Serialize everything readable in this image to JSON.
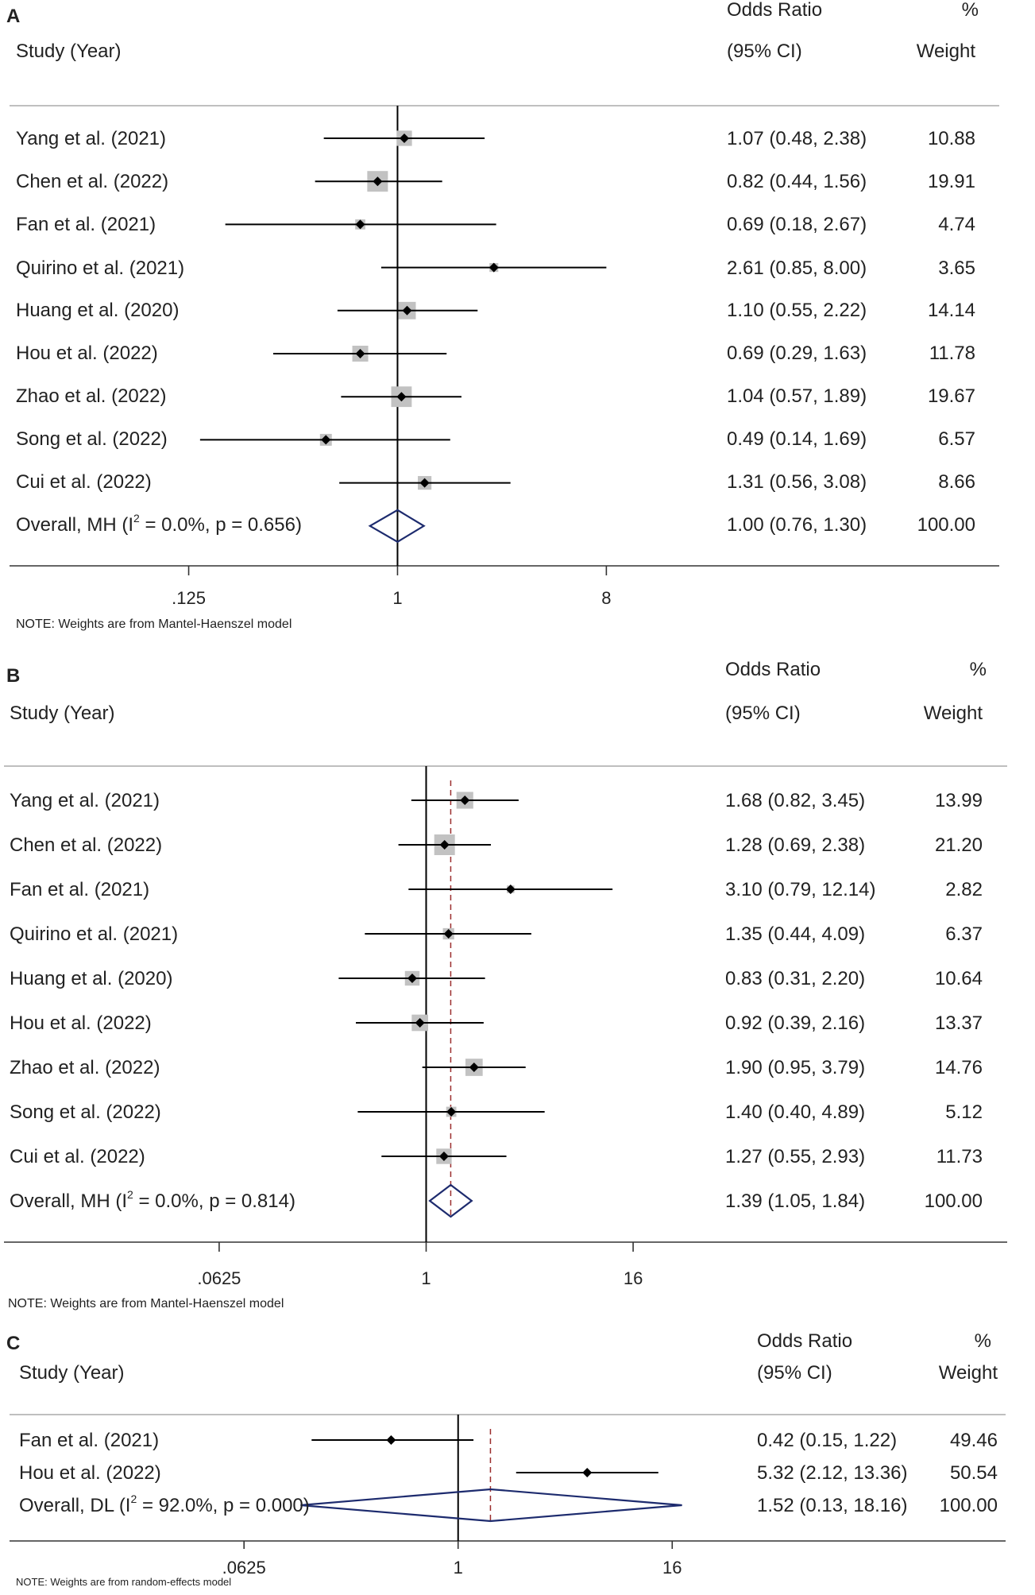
{
  "chart_data": [
    {
      "type": "forest",
      "panel": "A",
      "header": {
        "study": "Study (Year)",
        "effect_line1": "Odds Ratio",
        "effect_line2": "(95% CI)",
        "weight_line1": "%",
        "weight_line2": "Weight"
      },
      "studies": [
        {
          "label": "Yang et al. (2021)",
          "or": 1.07,
          "lo": 0.48,
          "hi": 2.38,
          "weight": 10.88,
          "ci_text": "1.07 (0.48, 2.38)",
          "weight_text": "10.88"
        },
        {
          "label": "Chen et al. (2022)",
          "or": 0.82,
          "lo": 0.44,
          "hi": 1.56,
          "weight": 19.91,
          "ci_text": "0.82 (0.44, 1.56)",
          "weight_text": "19.91"
        },
        {
          "label": "Fan et al. (2021)",
          "or": 0.69,
          "lo": 0.18,
          "hi": 2.67,
          "weight": 4.74,
          "ci_text": "0.69 (0.18, 2.67)",
          "weight_text": "4.74"
        },
        {
          "label": "Quirino et al. (2021)",
          "or": 2.61,
          "lo": 0.85,
          "hi": 8.0,
          "weight": 3.65,
          "ci_text": "2.61 (0.85, 8.00)",
          "weight_text": "3.65"
        },
        {
          "label": "Huang et al. (2020)",
          "or": 1.1,
          "lo": 0.55,
          "hi": 2.22,
          "weight": 14.14,
          "ci_text": "1.10 (0.55, 2.22)",
          "weight_text": "14.14"
        },
        {
          "label": "Hou et al. (2022)",
          "or": 0.69,
          "lo": 0.29,
          "hi": 1.63,
          "weight": 11.78,
          "ci_text": "0.69 (0.29, 1.63)",
          "weight_text": "11.78"
        },
        {
          "label": "Zhao et al. (2022)",
          "or": 1.04,
          "lo": 0.57,
          "hi": 1.89,
          "weight": 19.67,
          "ci_text": "1.04 (0.57, 1.89)",
          "weight_text": "19.67"
        },
        {
          "label": "Song et al. (2022)",
          "or": 0.49,
          "lo": 0.14,
          "hi": 1.69,
          "weight": 6.57,
          "ci_text": "0.49 (0.14, 1.69)",
          "weight_text": "6.57"
        },
        {
          "label": "Cui et al. (2022)",
          "or": 1.31,
          "lo": 0.56,
          "hi": 3.08,
          "weight": 8.66,
          "ci_text": "1.31 (0.56, 3.08)",
          "weight_text": "8.66"
        }
      ],
      "overall": {
        "label_prefix": "Overall, MH (I",
        "label_sup": "2",
        "label_suffix": " = 0.0%, p = 0.656)",
        "or": 1.0,
        "lo": 0.76,
        "hi": 1.3,
        "ci_text": "1.00 (0.76, 1.30)",
        "weight_text": "100.00"
      },
      "x_scale": "log",
      "x_ticks": [
        {
          "value": 0.125,
          "label": ".125"
        },
        {
          "value": 1,
          "label": "1"
        },
        {
          "value": 8,
          "label": "8"
        }
      ],
      "x_range": [
        0.021,
        400
      ],
      "pooled_line": false,
      "note": "NOTE: Weights are from Mantel-Haenszel model"
    },
    {
      "type": "forest",
      "panel": "B",
      "header": {
        "study": "Study (Year)",
        "effect_line1": "Odds Ratio",
        "effect_line2": "(95% CI)",
        "weight_line1": "%",
        "weight_line2": "Weight"
      },
      "studies": [
        {
          "label": "Yang et al. (2021)",
          "or": 1.68,
          "lo": 0.82,
          "hi": 3.45,
          "weight": 13.99,
          "ci_text": "1.68 (0.82, 3.45)",
          "weight_text": "13.99"
        },
        {
          "label": "Chen et al. (2022)",
          "or": 1.28,
          "lo": 0.69,
          "hi": 2.38,
          "weight": 21.2,
          "ci_text": "1.28 (0.69, 2.38)",
          "weight_text": "21.20"
        },
        {
          "label": "Fan et al. (2021)",
          "or": 3.1,
          "lo": 0.79,
          "hi": 12.14,
          "weight": 2.82,
          "ci_text": "3.10 (0.79, 12.14)",
          "weight_text": "2.82"
        },
        {
          "label": "Quirino et al. (2021)",
          "or": 1.35,
          "lo": 0.44,
          "hi": 4.09,
          "weight": 6.37,
          "ci_text": "1.35 (0.44, 4.09)",
          "weight_text": "6.37"
        },
        {
          "label": "Huang et al. (2020)",
          "or": 0.83,
          "lo": 0.31,
          "hi": 2.2,
          "weight": 10.64,
          "ci_text": "0.83 (0.31, 2.20)",
          "weight_text": "10.64"
        },
        {
          "label": "Hou et al. (2022)",
          "or": 0.92,
          "lo": 0.39,
          "hi": 2.16,
          "weight": 13.37,
          "ci_text": "0.92 (0.39, 2.16)",
          "weight_text": "13.37"
        },
        {
          "label": "Zhao et al. (2022)",
          "or": 1.9,
          "lo": 0.95,
          "hi": 3.79,
          "weight": 14.76,
          "ci_text": "1.90 (0.95, 3.79)",
          "weight_text": "14.76"
        },
        {
          "label": "Song et al. (2022)",
          "or": 1.4,
          "lo": 0.4,
          "hi": 4.89,
          "weight": 5.12,
          "ci_text": "1.40 (0.40, 4.89)",
          "weight_text": "5.12"
        },
        {
          "label": "Cui et al. (2022)",
          "or": 1.27,
          "lo": 0.55,
          "hi": 2.93,
          "weight": 11.73,
          "ci_text": "1.27 (0.55, 2.93)",
          "weight_text": "11.73"
        }
      ],
      "overall": {
        "label_prefix": "Overall, MH (I",
        "label_sup": "2",
        "label_suffix": " = 0.0%, p = 0.814)",
        "or": 1.39,
        "lo": 1.05,
        "hi": 1.84,
        "ci_text": "1.39 (1.05, 1.84)",
        "weight_text": "100.00"
      },
      "x_scale": "log",
      "x_ticks": [
        {
          "value": 0.0625,
          "label": ".0625"
        },
        {
          "value": 1,
          "label": "1"
        },
        {
          "value": 16,
          "label": "16"
        }
      ],
      "x_range": [
        0.0035,
        2400
      ],
      "pooled_line": true,
      "note": "NOTE: Weights are from Mantel-Haenszel model"
    },
    {
      "type": "forest",
      "panel": "C",
      "header": {
        "study": "Study (Year)",
        "effect_line1": "Odds Ratio",
        "effect_line2": "(95% CI)",
        "weight_line1": "%",
        "weight_line2": "Weight"
      },
      "studies": [
        {
          "label": "Fan et al. (2021)",
          "or": 0.42,
          "lo": 0.15,
          "hi": 1.22,
          "weight": 49.46,
          "ci_text": "0.42 (0.15, 1.22)",
          "weight_text": "49.46"
        },
        {
          "label": "Hou et al. (2022)",
          "or": 5.32,
          "lo": 2.12,
          "hi": 13.36,
          "weight": 50.54,
          "ci_text": "5.32 (2.12, 13.36)",
          "weight_text": "50.54"
        }
      ],
      "overall": {
        "label_prefix": "Overall, DL (I",
        "label_sup": "2",
        "label_suffix": " = 92.0%, p = 0.000)",
        "or": 1.52,
        "lo": 0.13,
        "hi": 18.16,
        "ci_text": "1.52 (0.13, 18.16)",
        "weight_text": "100.00"
      },
      "x_scale": "log",
      "x_ticks": [
        {
          "value": 0.0625,
          "label": ".0625"
        },
        {
          "value": 1,
          "label": "1"
        },
        {
          "value": 16,
          "label": "16"
        }
      ],
      "x_range": [
        0.003,
        1200
      ],
      "pooled_line": true,
      "note": "NOTE: Weights are from random-effects model"
    }
  ]
}
